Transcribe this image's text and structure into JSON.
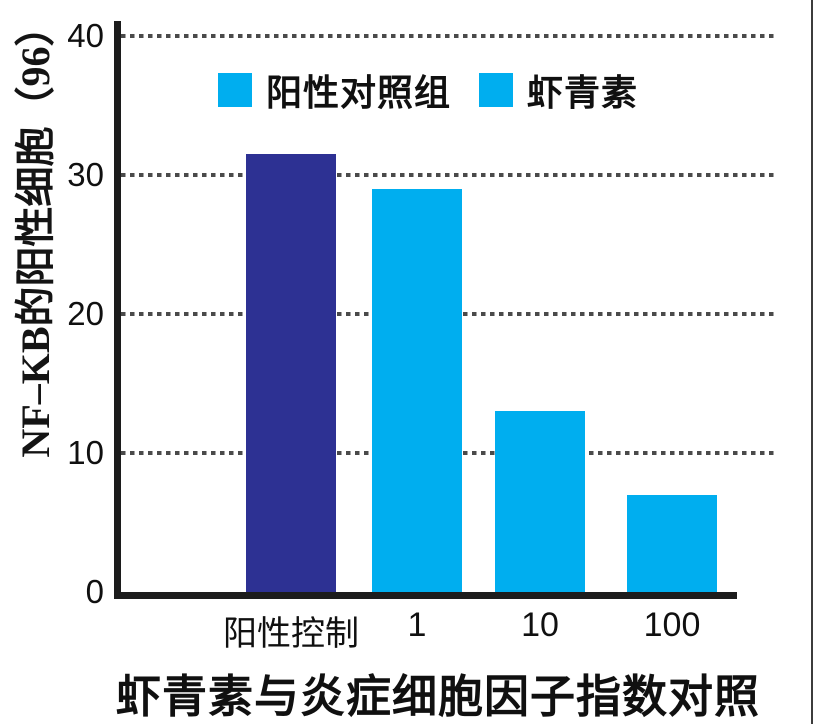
{
  "chart_data": {
    "type": "bar",
    "title": "虾青素与炎症细胞因子指数对照",
    "ylabel": "NF–KB的阳性细胞（96）",
    "xlabel": "",
    "categories": [
      "阳性控制",
      "1",
      "10",
      "100"
    ],
    "values": [
      31.5,
      29,
      13,
      7
    ],
    "bar_colors": [
      "#2D3193",
      "#00AEEF",
      "#00AEEF",
      "#00AEEF"
    ],
    "ylim": [
      0,
      40
    ],
    "yticks": [
      0,
      10,
      20,
      30,
      40
    ],
    "grid": "horizontal-dotted",
    "grid_color": "#4a4a4a",
    "axis_color": "#1c1c1c",
    "legend": {
      "position": "top-inside",
      "items": [
        {
          "label": "阳性对照组",
          "color": "#00AEEF"
        },
        {
          "label": "虾青素",
          "color": "#00AEEF"
        }
      ]
    },
    "series": [
      {
        "name": "阳性对照组",
        "x": [
          "阳性控制"
        ],
        "values": [
          31.5
        ]
      },
      {
        "name": "虾青素",
        "x": [
          "1",
          "10",
          "100"
        ],
        "values": [
          29,
          13,
          7
        ]
      }
    ]
  },
  "figure": {
    "accent_dark_blue": "#2D3193",
    "accent_cyan": "#00AEEF",
    "right_border_color": "#3c3c3c"
  }
}
